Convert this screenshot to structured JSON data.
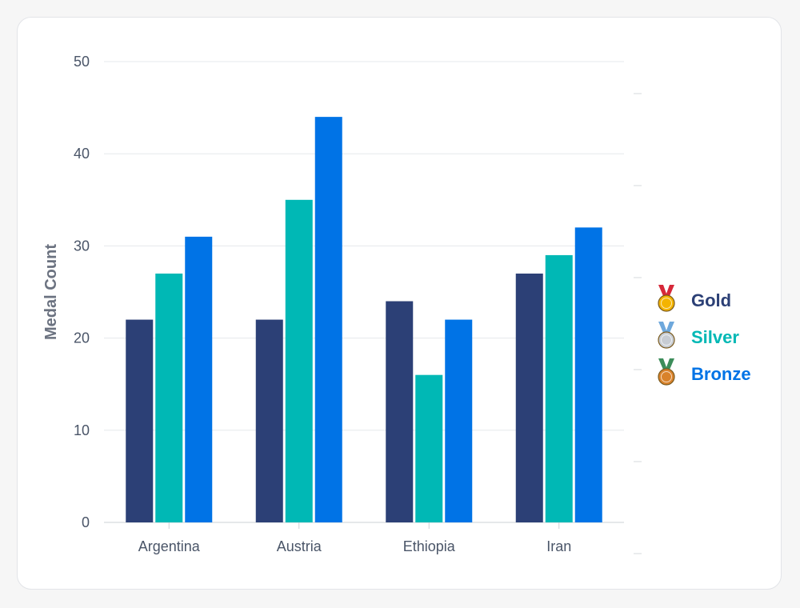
{
  "chart_data": {
    "type": "bar",
    "categories": [
      "Argentina",
      "Austria",
      "Ethiopia",
      "Iran"
    ],
    "series": [
      {
        "name": "Gold",
        "values": [
          22,
          22,
          24,
          27
        ],
        "color": "#2c4076",
        "medal_icon": "gold-medal-icon",
        "medal_color": "#f4b400",
        "ribbon_color": "#d62839"
      },
      {
        "name": "Silver",
        "values": [
          27,
          35,
          16,
          29
        ],
        "color": "#00b8b5",
        "medal_icon": "silver-medal-icon",
        "medal_color": "#c7ccd3",
        "ribbon_color": "#6ea8dc"
      },
      {
        "name": "Bronze",
        "values": [
          31,
          44,
          22,
          32
        ],
        "color": "#0073e6",
        "medal_icon": "bronze-medal-icon",
        "medal_color": "#d9822b",
        "ribbon_color": "#3c8d5a"
      }
    ],
    "title": "",
    "xlabel": "",
    "ylabel": "Medal Count",
    "ylim": [
      0,
      50
    ],
    "yticks": [
      0,
      10,
      20,
      30,
      40,
      50
    ],
    "grid": true,
    "legend_position": "right"
  }
}
